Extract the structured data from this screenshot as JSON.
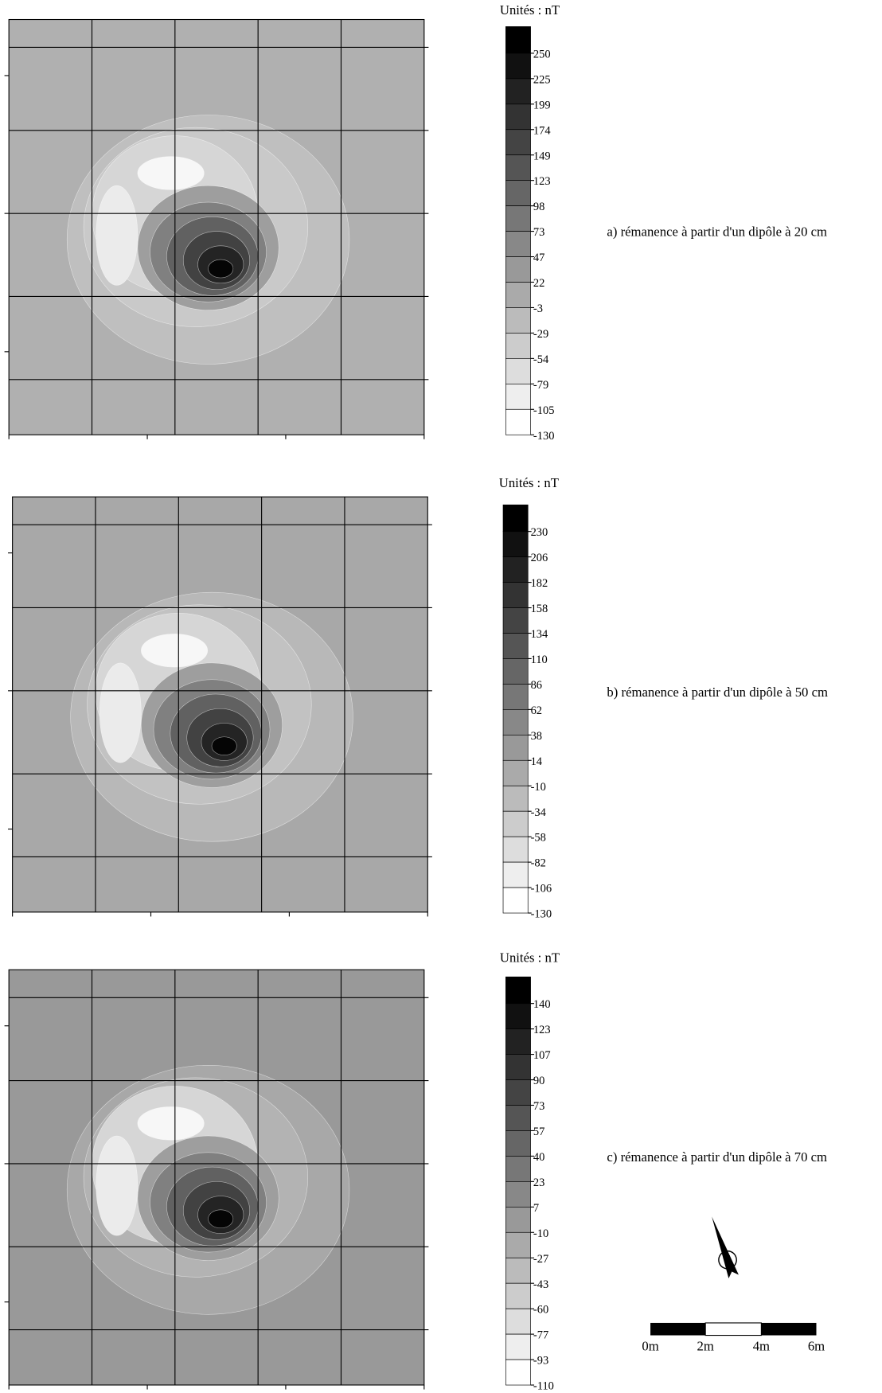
{
  "panels": [
    {
      "units_label": "Unités : nT",
      "levels": [
        250,
        225,
        199,
        174,
        149,
        123,
        98,
        73,
        47,
        22,
        -3,
        -29,
        -54,
        -79,
        -105,
        -130
      ],
      "caption": "a) rémanence à partir d'un dipôle à 20 cm"
    },
    {
      "units_label": "Unités : nT",
      "levels": [
        230,
        206,
        182,
        158,
        134,
        110,
        86,
        62,
        38,
        14,
        -10,
        -34,
        -58,
        -82,
        -106,
        -130
      ],
      "caption": "b) rémanence à partir d'un dipôle à 50 cm"
    },
    {
      "units_label": "Unités : nT",
      "levels": [
        140,
        123,
        107,
        90,
        73,
        57,
        40,
        23,
        7,
        -10,
        -27,
        -43,
        -60,
        -77,
        -93,
        -110
      ],
      "caption": "c) rémanence à partir d'un dipôle à 70 cm"
    }
  ],
  "north_label": "N",
  "scale_bar": {
    "labels": [
      "0m",
      "2m",
      "4m",
      "6m"
    ]
  }
}
